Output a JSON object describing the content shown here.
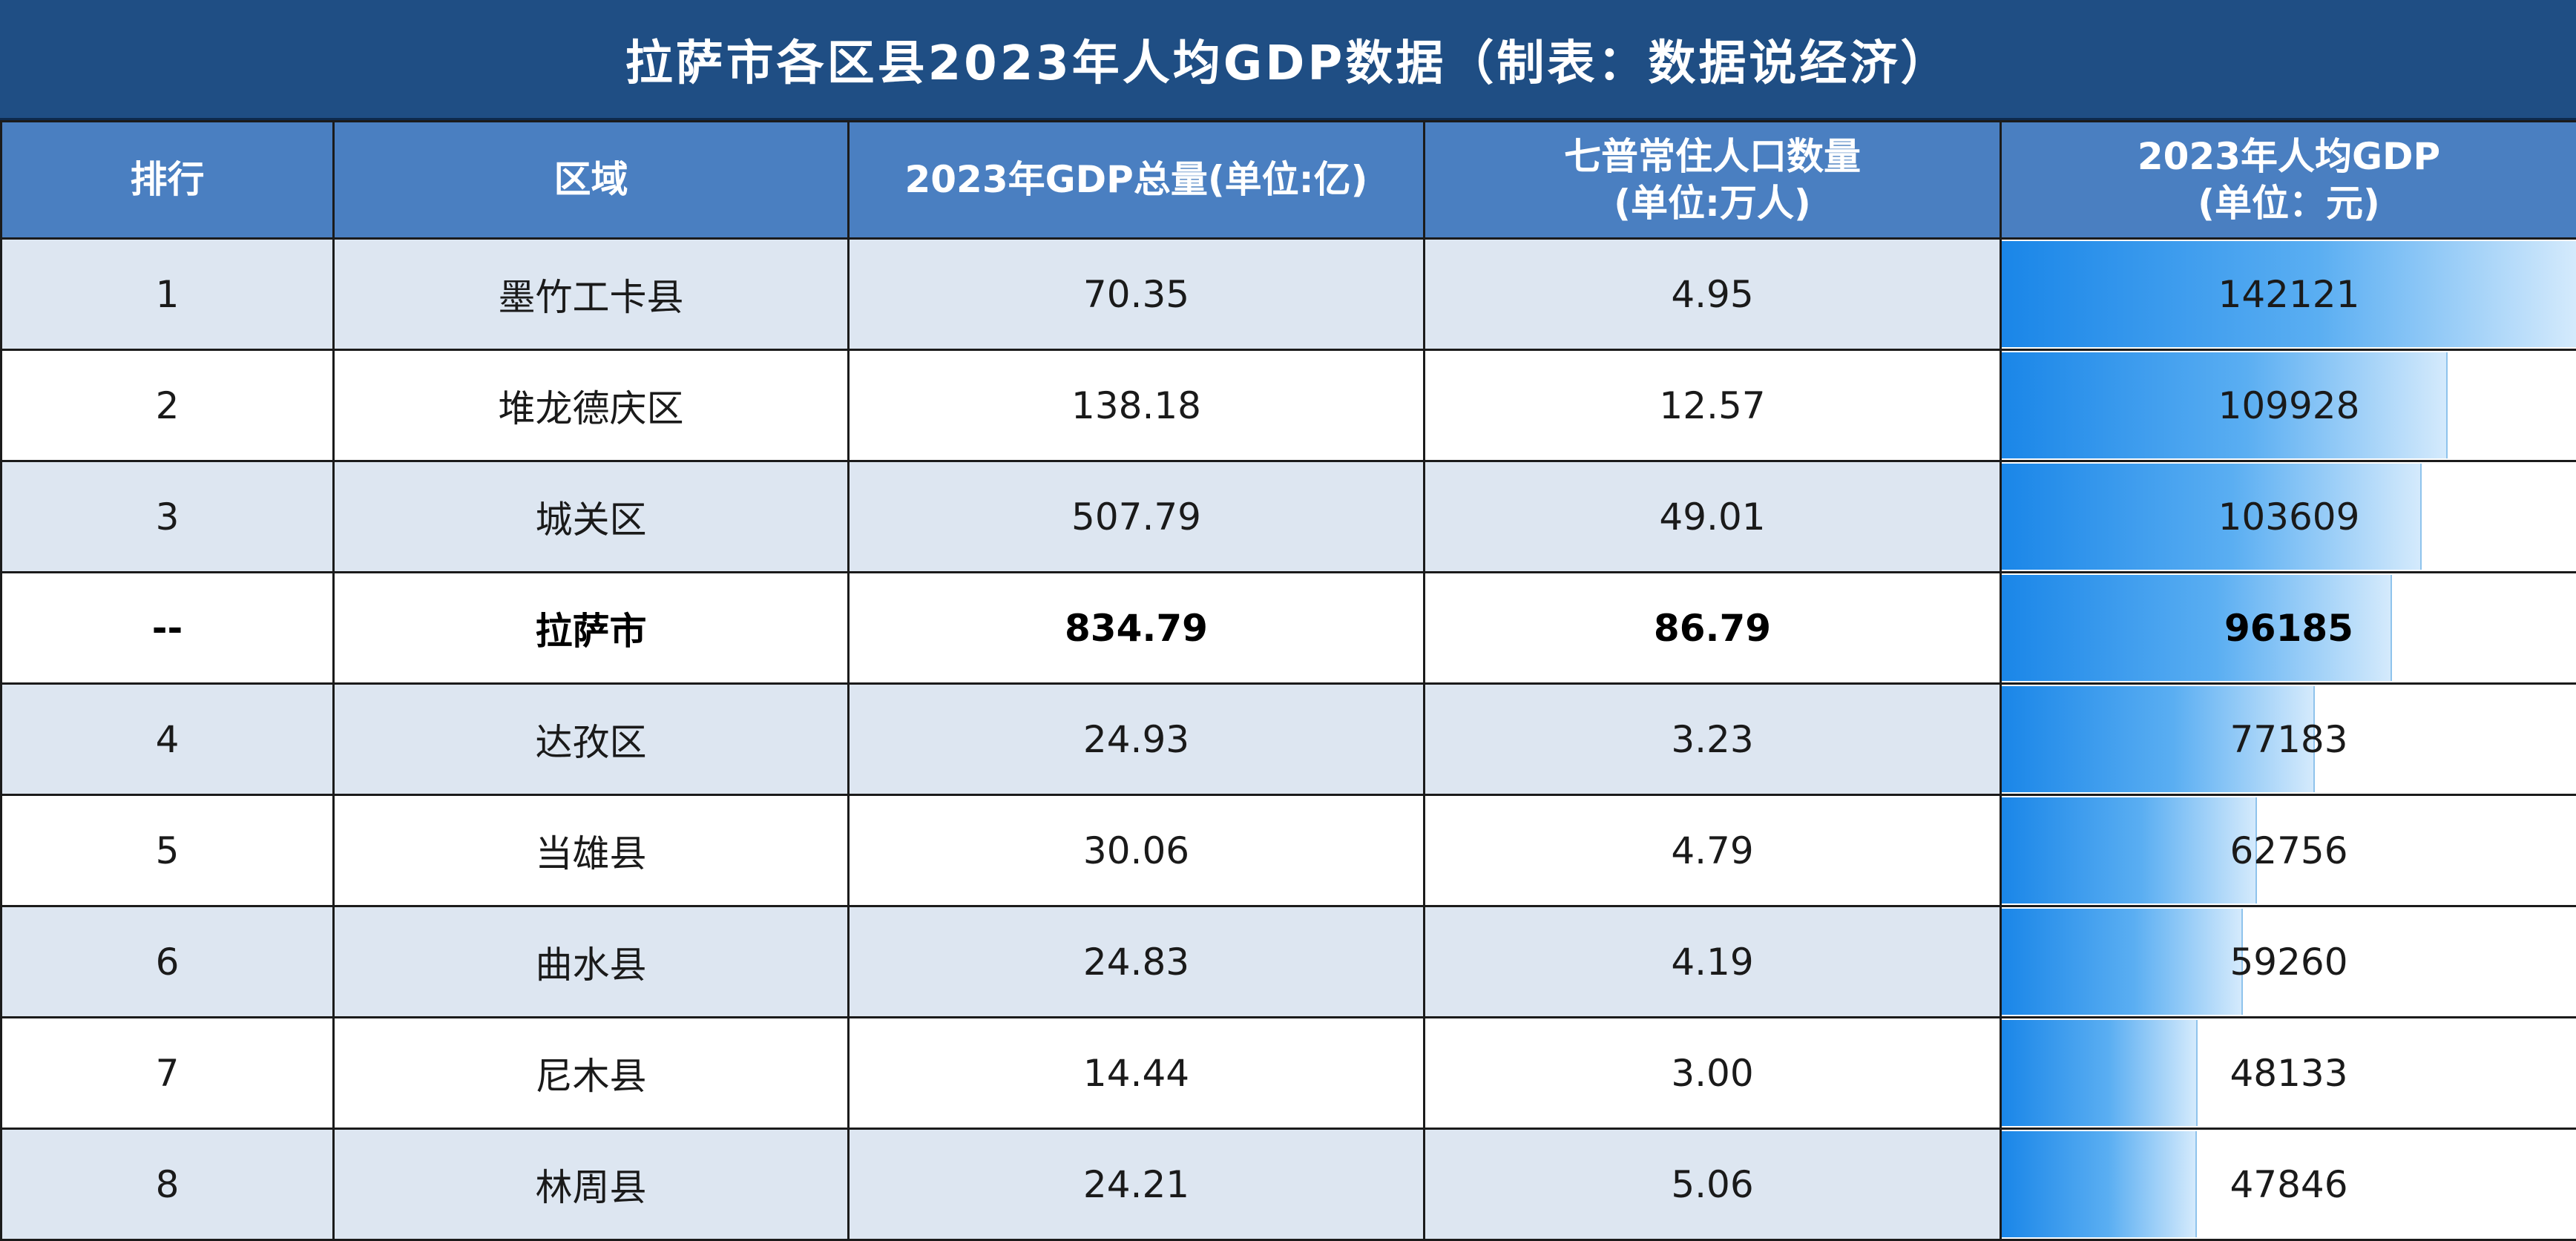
{
  "title": "拉萨市各区县2023年人均GDP数据（制表：数据说经济）",
  "colors": {
    "title_bg": "#1f4e84",
    "header_bg": "#4a7fc1",
    "row_alt_bg": "#dde6f1",
    "bar_start": "#1a86e8",
    "bar_end": "#d4eafc"
  },
  "headers": {
    "rank": "排行",
    "region": "区域",
    "gdp": "2023年GDP总量(单位:亿)",
    "pop_line1": "七普常住人口数量",
    "pop_line2": "(单位:万人)",
    "pcgdp_line1": "2023年人均GDP",
    "pcgdp_line2": "(单位：元)"
  },
  "chart_data": {
    "type": "table",
    "bar_column": "per_capita_gdp",
    "bar_max": 142121,
    "rows": [
      {
        "rank": "1",
        "region": "墨竹工卡县",
        "gdp": "70.35",
        "population": "4.95",
        "per_capita_gdp": 142121,
        "total": false
      },
      {
        "rank": "2",
        "region": "堆龙德庆区",
        "gdp": "138.18",
        "population": "12.57",
        "per_capita_gdp": 109928,
        "total": false
      },
      {
        "rank": "3",
        "region": "城关区",
        "gdp": "507.79",
        "population": "49.01",
        "per_capita_gdp": 103609,
        "total": false
      },
      {
        "rank": "--",
        "region": "拉萨市",
        "gdp": "834.79",
        "population": "86.79",
        "per_capita_gdp": 96185,
        "total": true
      },
      {
        "rank": "4",
        "region": "达孜区",
        "gdp": "24.93",
        "population": "3.23",
        "per_capita_gdp": 77183,
        "total": false
      },
      {
        "rank": "5",
        "region": "当雄县",
        "gdp": "30.06",
        "population": "4.79",
        "per_capita_gdp": 62756,
        "total": false
      },
      {
        "rank": "6",
        "region": "曲水县",
        "gdp": "24.83",
        "population": "4.19",
        "per_capita_gdp": 59260,
        "total": false
      },
      {
        "rank": "7",
        "region": "尼木县",
        "gdp": "14.44",
        "population": "3.00",
        "per_capita_gdp": 48133,
        "total": false
      },
      {
        "rank": "8",
        "region": "林周县",
        "gdp": "24.21",
        "population": "5.06",
        "per_capita_gdp": 47846,
        "total": false
      }
    ]
  }
}
